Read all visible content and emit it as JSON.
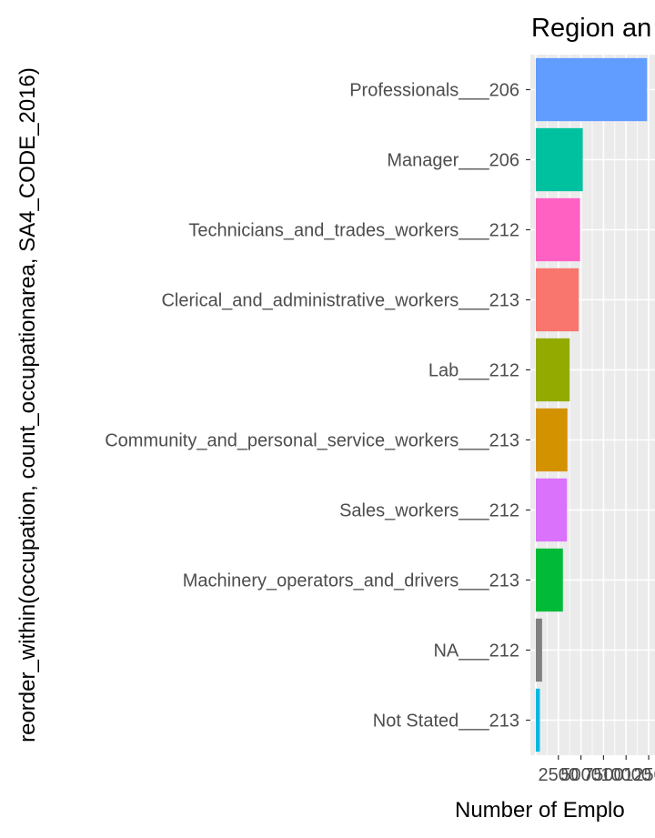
{
  "chart_data": {
    "type": "bar",
    "orientation": "horizontal",
    "title": "Region an",
    "xlabel": "Number of Emplo",
    "ylabel": "reorder_within(occupation, count_occupationarea, SA4_CODE_2016)",
    "categories": [
      "Professionals___206",
      "Manager___206",
      "Technicians_and_trades_workers___212",
      "Clerical_and_administrative_workers___213",
      "Lab___212",
      "Community_and_personal_service_workers___213",
      "Sales_workers___212",
      "Machinery_operators_and_drivers___213",
      "NA___212",
      "Not Stated___213"
    ],
    "values": [
      12320,
      5200,
      4900,
      4750,
      3750,
      3500,
      3450,
      3000,
      700,
      450
    ],
    "colors": [
      "#619CFF",
      "#00C19F",
      "#FF61C3",
      "#F8766D",
      "#93AA00",
      "#D39200",
      "#DB72FB",
      "#00BA38",
      "#808080",
      "#00B9E3"
    ],
    "x_tick_labels": [
      "2500",
      "5000",
      "7500",
      "10000",
      "12500"
    ],
    "x_ticks": [
      2500,
      5000,
      7500,
      10000,
      12500
    ],
    "xlim": [
      -600,
      13200
    ],
    "grid": true,
    "legend": "none",
    "panel_background": "#EBEBEB",
    "grid_color": "#FFFFFF"
  }
}
